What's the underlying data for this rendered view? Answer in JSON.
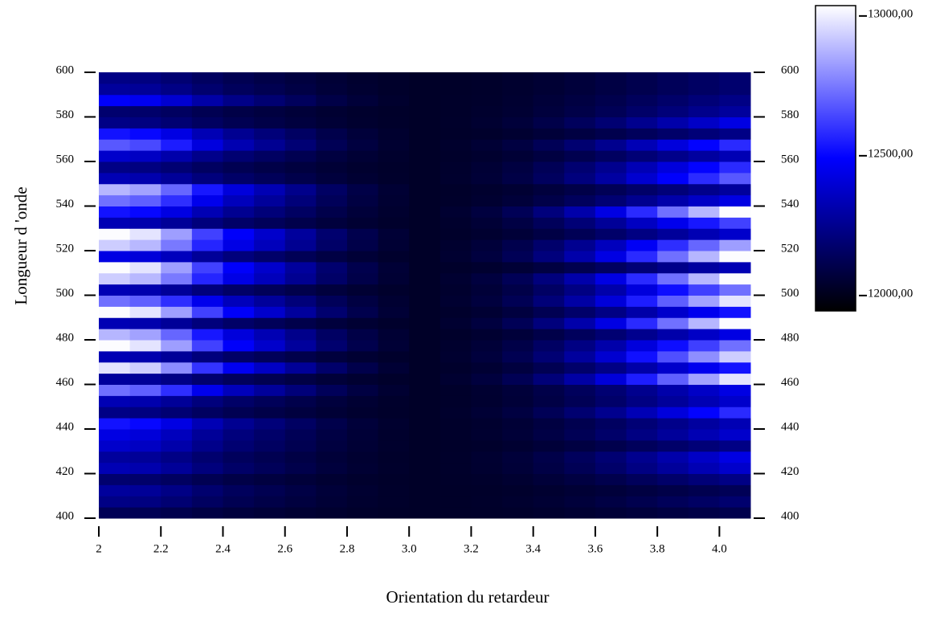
{
  "chart_data": {
    "type": "heatmap",
    "x_label": "Orientation du retardeur",
    "y_label": "Longueur d 'onde",
    "xlim": [
      2,
      4.1
    ],
    "ylim": [
      400,
      600
    ],
    "xticks": [
      2,
      2.2,
      2.4,
      2.6,
      2.8,
      {
        "value": 3,
        "label": "3.0"
      },
      3.2,
      3.4,
      3.6,
      3.8,
      {
        "value": 4,
        "label": "4.0"
      }
    ],
    "yticks": [
      400,
      420,
      440,
      460,
      480,
      500,
      520,
      540,
      560,
      580,
      600
    ],
    "x_bins": [
      2,
      2.1,
      2.2,
      2.3,
      2.4,
      2.5,
      2.6,
      2.7,
      2.8,
      2.9,
      3,
      3.1,
      3.2,
      3.3,
      3.4,
      3.5,
      3.6,
      3.7,
      3.8,
      3.9,
      4,
      4.1
    ],
    "y_bins": [
      400,
      405,
      410,
      415,
      420,
      425,
      430,
      435,
      440,
      445,
      450,
      455,
      460,
      465,
      470,
      475,
      480,
      485,
      490,
      495,
      500,
      505,
      510,
      515,
      520,
      525,
      530,
      535,
      540,
      545,
      550,
      555,
      560,
      565,
      570,
      575,
      580,
      585,
      590,
      595,
      600
    ],
    "colormap": [
      "#000000",
      "#0000ff",
      "#ffffff"
    ],
    "zlim": [
      11945,
      13037
    ],
    "zticks": [
      {
        "value": 12000,
        "label": "12000,00"
      },
      {
        "value": 12500,
        "label": "12500,00"
      },
      {
        "value": 13000,
        "label": "13000,00"
      }
    ],
    "z": [
      [
        12130,
        12125,
        12110,
        12090,
        12075,
        12065,
        12055,
        12045,
        12038,
        12033,
        12030,
        12032,
        12034,
        12038,
        12044,
        12052,
        12062,
        12074,
        12086,
        12098,
        12110
      ],
      [
        12230,
        12220,
        12190,
        12150,
        12120,
        12100,
        12080,
        12060,
        12046,
        12036,
        12030,
        12033,
        12038,
        12045,
        12057,
        12072,
        12090,
        12113,
        12135,
        12158,
        12180
      ],
      [
        12280,
        12268,
        12230,
        12180,
        12143,
        12118,
        12093,
        12068,
        12050,
        12038,
        12030,
        12032,
        12035,
        12040,
        12048,
        12058,
        12070,
        12085,
        12100,
        12115,
        12130
      ],
      [
        12180,
        12173,
        12150,
        12120,
        12098,
        12083,
        12068,
        12053,
        12042,
        12035,
        12030,
        12034,
        12040,
        12050,
        12066,
        12086,
        12110,
        12140,
        12170,
        12200,
        12230
      ],
      [
        12330,
        12315,
        12270,
        12210,
        12165,
        12135,
        12105,
        12075,
        12054,
        12039,
        12030,
        12037,
        12048,
        12065,
        12093,
        12128,
        12170,
        12223,
        12275,
        12328,
        12380
      ],
      [
        12280,
        12268,
        12230,
        12180,
        12143,
        12118,
        12093,
        12068,
        12050,
        12038,
        12030,
        12038,
        12050,
        12070,
        12102,
        12142,
        12190,
        12250,
        12310,
        12370,
        12430
      ],
      [
        12380,
        12363,
        12310,
        12240,
        12188,
        12153,
        12118,
        12083,
        12058,
        12041,
        12030,
        12034,
        12040,
        12050,
        12066,
        12086,
        12110,
        12140,
        12170,
        12200,
        12230
      ],
      [
        12430,
        12410,
        12350,
        12270,
        12210,
        12170,
        12130,
        12090,
        12062,
        12042,
        12030,
        12037,
        12048,
        12065,
        12093,
        12128,
        12170,
        12223,
        12275,
        12328,
        12380
      ],
      [
        12530,
        12505,
        12430,
        12330,
        12255,
        12205,
        12155,
        12105,
        12070,
        12045,
        12030,
        12036,
        12045,
        12060,
        12084,
        12114,
        12150,
        12195,
        12240,
        12285,
        12330
      ],
      [
        12230,
        12220,
        12190,
        12150,
        12120,
        12100,
        12080,
        12060,
        12046,
        12036,
        12030,
        12041,
        12058,
        12085,
        12129,
        12184,
        12250,
        12333,
        12415,
        12498,
        12580
      ],
      [
        12330,
        12315,
        12270,
        12210,
        12165,
        12135,
        12105,
        12075,
        12054,
        12039,
        12030,
        12037,
        12048,
        12065,
        12093,
        12128,
        12170,
        12223,
        12275,
        12328,
        12380
      ],
      [
        12730,
        12695,
        12590,
        12450,
        12345,
        12275,
        12205,
        12135,
        12086,
        12051,
        12030,
        12038,
        12050,
        12070,
        12102,
        12142,
        12190,
        12250,
        12310,
        12370,
        12430
      ],
      [
        12280,
        12268,
        12230,
        12180,
        12143,
        12118,
        12093,
        12068,
        12050,
        12038,
        12030,
        12049,
        12078,
        12125,
        12201,
        12296,
        12410,
        12553,
        12695,
        12838,
        12980
      ],
      [
        12980,
        12933,
        12790,
        12600,
        12458,
        12363,
        12268,
        12173,
        12106,
        12059,
        12030,
        12040,
        12055,
        12080,
        12120,
        12170,
        12230,
        12305,
        12380,
        12455,
        12530
      ],
      [
        12330,
        12315,
        12270,
        12210,
        12165,
        12135,
        12105,
        12075,
        12054,
        12039,
        12030,
        12048,
        12075,
        12120,
        12192,
        12282,
        12390,
        12525,
        12660,
        12795,
        12930
      ],
      [
        13030,
        12980,
        12830,
        12630,
        12480,
        12380,
        12280,
        12180,
        12110,
        12060,
        12030,
        12044,
        12065,
        12100,
        12156,
        12226,
        12310,
        12415,
        12520,
        12625,
        12730
      ],
      [
        12880,
        12838,
        12710,
        12540,
        12413,
        12328,
        12243,
        12158,
        12098,
        12056,
        12030,
        12038,
        12050,
        12070,
        12102,
        12142,
        12190,
        12250,
        12310,
        12370,
        12430
      ],
      [
        12330,
        12315,
        12270,
        12210,
        12165,
        12135,
        12105,
        12075,
        12054,
        12039,
        12030,
        12050,
        12080,
        12130,
        12210,
        12310,
        12430,
        12580,
        12730,
        12880,
        13030
      ],
      [
        13030,
        12980,
        12830,
        12630,
        12480,
        12380,
        12280,
        12180,
        12110,
        12060,
        12030,
        12040,
        12055,
        12080,
        12120,
        12170,
        12230,
        12305,
        12380,
        12455,
        12530
      ],
      [
        12730,
        12695,
        12590,
        12450,
        12345,
        12275,
        12205,
        12135,
        12086,
        12051,
        12030,
        12049,
        12078,
        12125,
        12201,
        12296,
        12410,
        12553,
        12695,
        12838,
        12980
      ],
      [
        12330,
        12315,
        12270,
        12210,
        12165,
        12135,
        12105,
        12075,
        12054,
        12039,
        12030,
        12044,
        12065,
        12100,
        12156,
        12226,
        12310,
        12415,
        12520,
        12625,
        12730
      ],
      [
        12930,
        12885,
        12750,
        12570,
        12435,
        12345,
        12255,
        12165,
        12102,
        12057,
        12030,
        12050,
        12080,
        12130,
        12210,
        12310,
        12430,
        12580,
        12730,
        12880,
        13030
      ],
      [
        13030,
        12980,
        12830,
        12630,
        12480,
        12380,
        12280,
        12180,
        12110,
        12060,
        12030,
        12036,
        12045,
        12060,
        12084,
        12114,
        12150,
        12195,
        12240,
        12285,
        12330
      ],
      [
        12430,
        12410,
        12350,
        12270,
        12210,
        12170,
        12130,
        12090,
        12062,
        12042,
        12030,
        12050,
        12080,
        12130,
        12210,
        12310,
        12430,
        12580,
        12730,
        12880,
        13030
      ],
      [
        12930,
        12885,
        12750,
        12570,
        12435,
        12345,
        12255,
        12165,
        12102,
        12057,
        12030,
        12046,
        12070,
        12110,
        12174,
        12254,
        12350,
        12470,
        12590,
        12710,
        12830
      ],
      [
        13030,
        12980,
        12830,
        12630,
        12480,
        12380,
        12280,
        12180,
        12110,
        12060,
        12030,
        12037,
        12048,
        12065,
        12093,
        12128,
        12170,
        12223,
        12275,
        12328,
        12380
      ],
      [
        12330,
        12315,
        12270,
        12210,
        12165,
        12135,
        12105,
        12075,
        12054,
        12039,
        12030,
        12042,
        12060,
        12090,
        12138,
        12198,
        12270,
        12360,
        12450,
        12540,
        12630
      ],
      [
        12530,
        12505,
        12430,
        12330,
        12255,
        12205,
        12155,
        12105,
        12070,
        12045,
        12030,
        12050,
        12080,
        12130,
        12210,
        12310,
        12430,
        12580,
        12730,
        12880,
        13030
      ],
      [
        12730,
        12695,
        12590,
        12450,
        12345,
        12275,
        12205,
        12135,
        12086,
        12051,
        12030,
        12038,
        12050,
        12070,
        12102,
        12142,
        12190,
        12250,
        12310,
        12370,
        12430
      ],
      [
        12880,
        12838,
        12710,
        12540,
        12413,
        12328,
        12243,
        12158,
        12098,
        12056,
        12030,
        12035,
        12043,
        12055,
        12075,
        12100,
        12130,
        12168,
        12205,
        12243,
        12280
      ],
      [
        12330,
        12315,
        12270,
        12210,
        12165,
        12135,
        12105,
        12075,
        12054,
        12039,
        12030,
        12043,
        12063,
        12095,
        12147,
        12212,
        12290,
        12388,
        12485,
        12583,
        12680
      ],
      [
        12230,
        12220,
        12190,
        12150,
        12120,
        12100,
        12080,
        12060,
        12046,
        12036,
        12030,
        12041,
        12058,
        12085,
        12129,
        12184,
        12250,
        12333,
        12415,
        12498,
        12580
      ],
      [
        12380,
        12363,
        12310,
        12240,
        12188,
        12153,
        12118,
        12083,
        12058,
        12041,
        12030,
        12036,
        12045,
        12060,
        12084,
        12114,
        12150,
        12195,
        12240,
        12285,
        12330
      ],
      [
        12680,
        12648,
        12550,
        12420,
        12323,
        12258,
        12193,
        12128,
        12082,
        12050,
        12030,
        12041,
        12058,
        12085,
        12129,
        12184,
        12250,
        12333,
        12415,
        12498,
        12580
      ],
      [
        12530,
        12505,
        12430,
        12330,
        12255,
        12205,
        12155,
        12105,
        12070,
        12045,
        12030,
        12034,
        12040,
        12050,
        12066,
        12086,
        12110,
        12140,
        12170,
        12200,
        12230
      ],
      [
        12230,
        12220,
        12190,
        12150,
        12120,
        12100,
        12080,
        12060,
        12046,
        12036,
        12030,
        12038,
        12050,
        12070,
        12102,
        12142,
        12190,
        12250,
        12310,
        12370,
        12430
      ],
      [
        12180,
        12173,
        12150,
        12120,
        12098,
        12083,
        12068,
        12053,
        12042,
        12035,
        12030,
        12035,
        12043,
        12055,
        12075,
        12100,
        12130,
        12168,
        12205,
        12243,
        12280
      ],
      [
        12480,
        12458,
        12390,
        12300,
        12233,
        12188,
        12143,
        12098,
        12066,
        12044,
        12030,
        12034,
        12040,
        12050,
        12066,
        12086,
        12110,
        12140,
        12170,
        12200,
        12230
      ],
      [
        12280,
        12268,
        12230,
        12180,
        12143,
        12118,
        12093,
        12068,
        12050,
        12038,
        12030,
        12033,
        12038,
        12045,
        12057,
        12072,
        12090,
        12113,
        12135,
        12158,
        12180
      ],
      [
        12230,
        12220,
        12190,
        12150,
        12120,
        12100,
        12080,
        12060,
        12046,
        12036,
        12030,
        12033,
        12038,
        12045,
        12057,
        12072,
        12090,
        12113,
        12135,
        12158,
        12180
      ]
    ]
  }
}
